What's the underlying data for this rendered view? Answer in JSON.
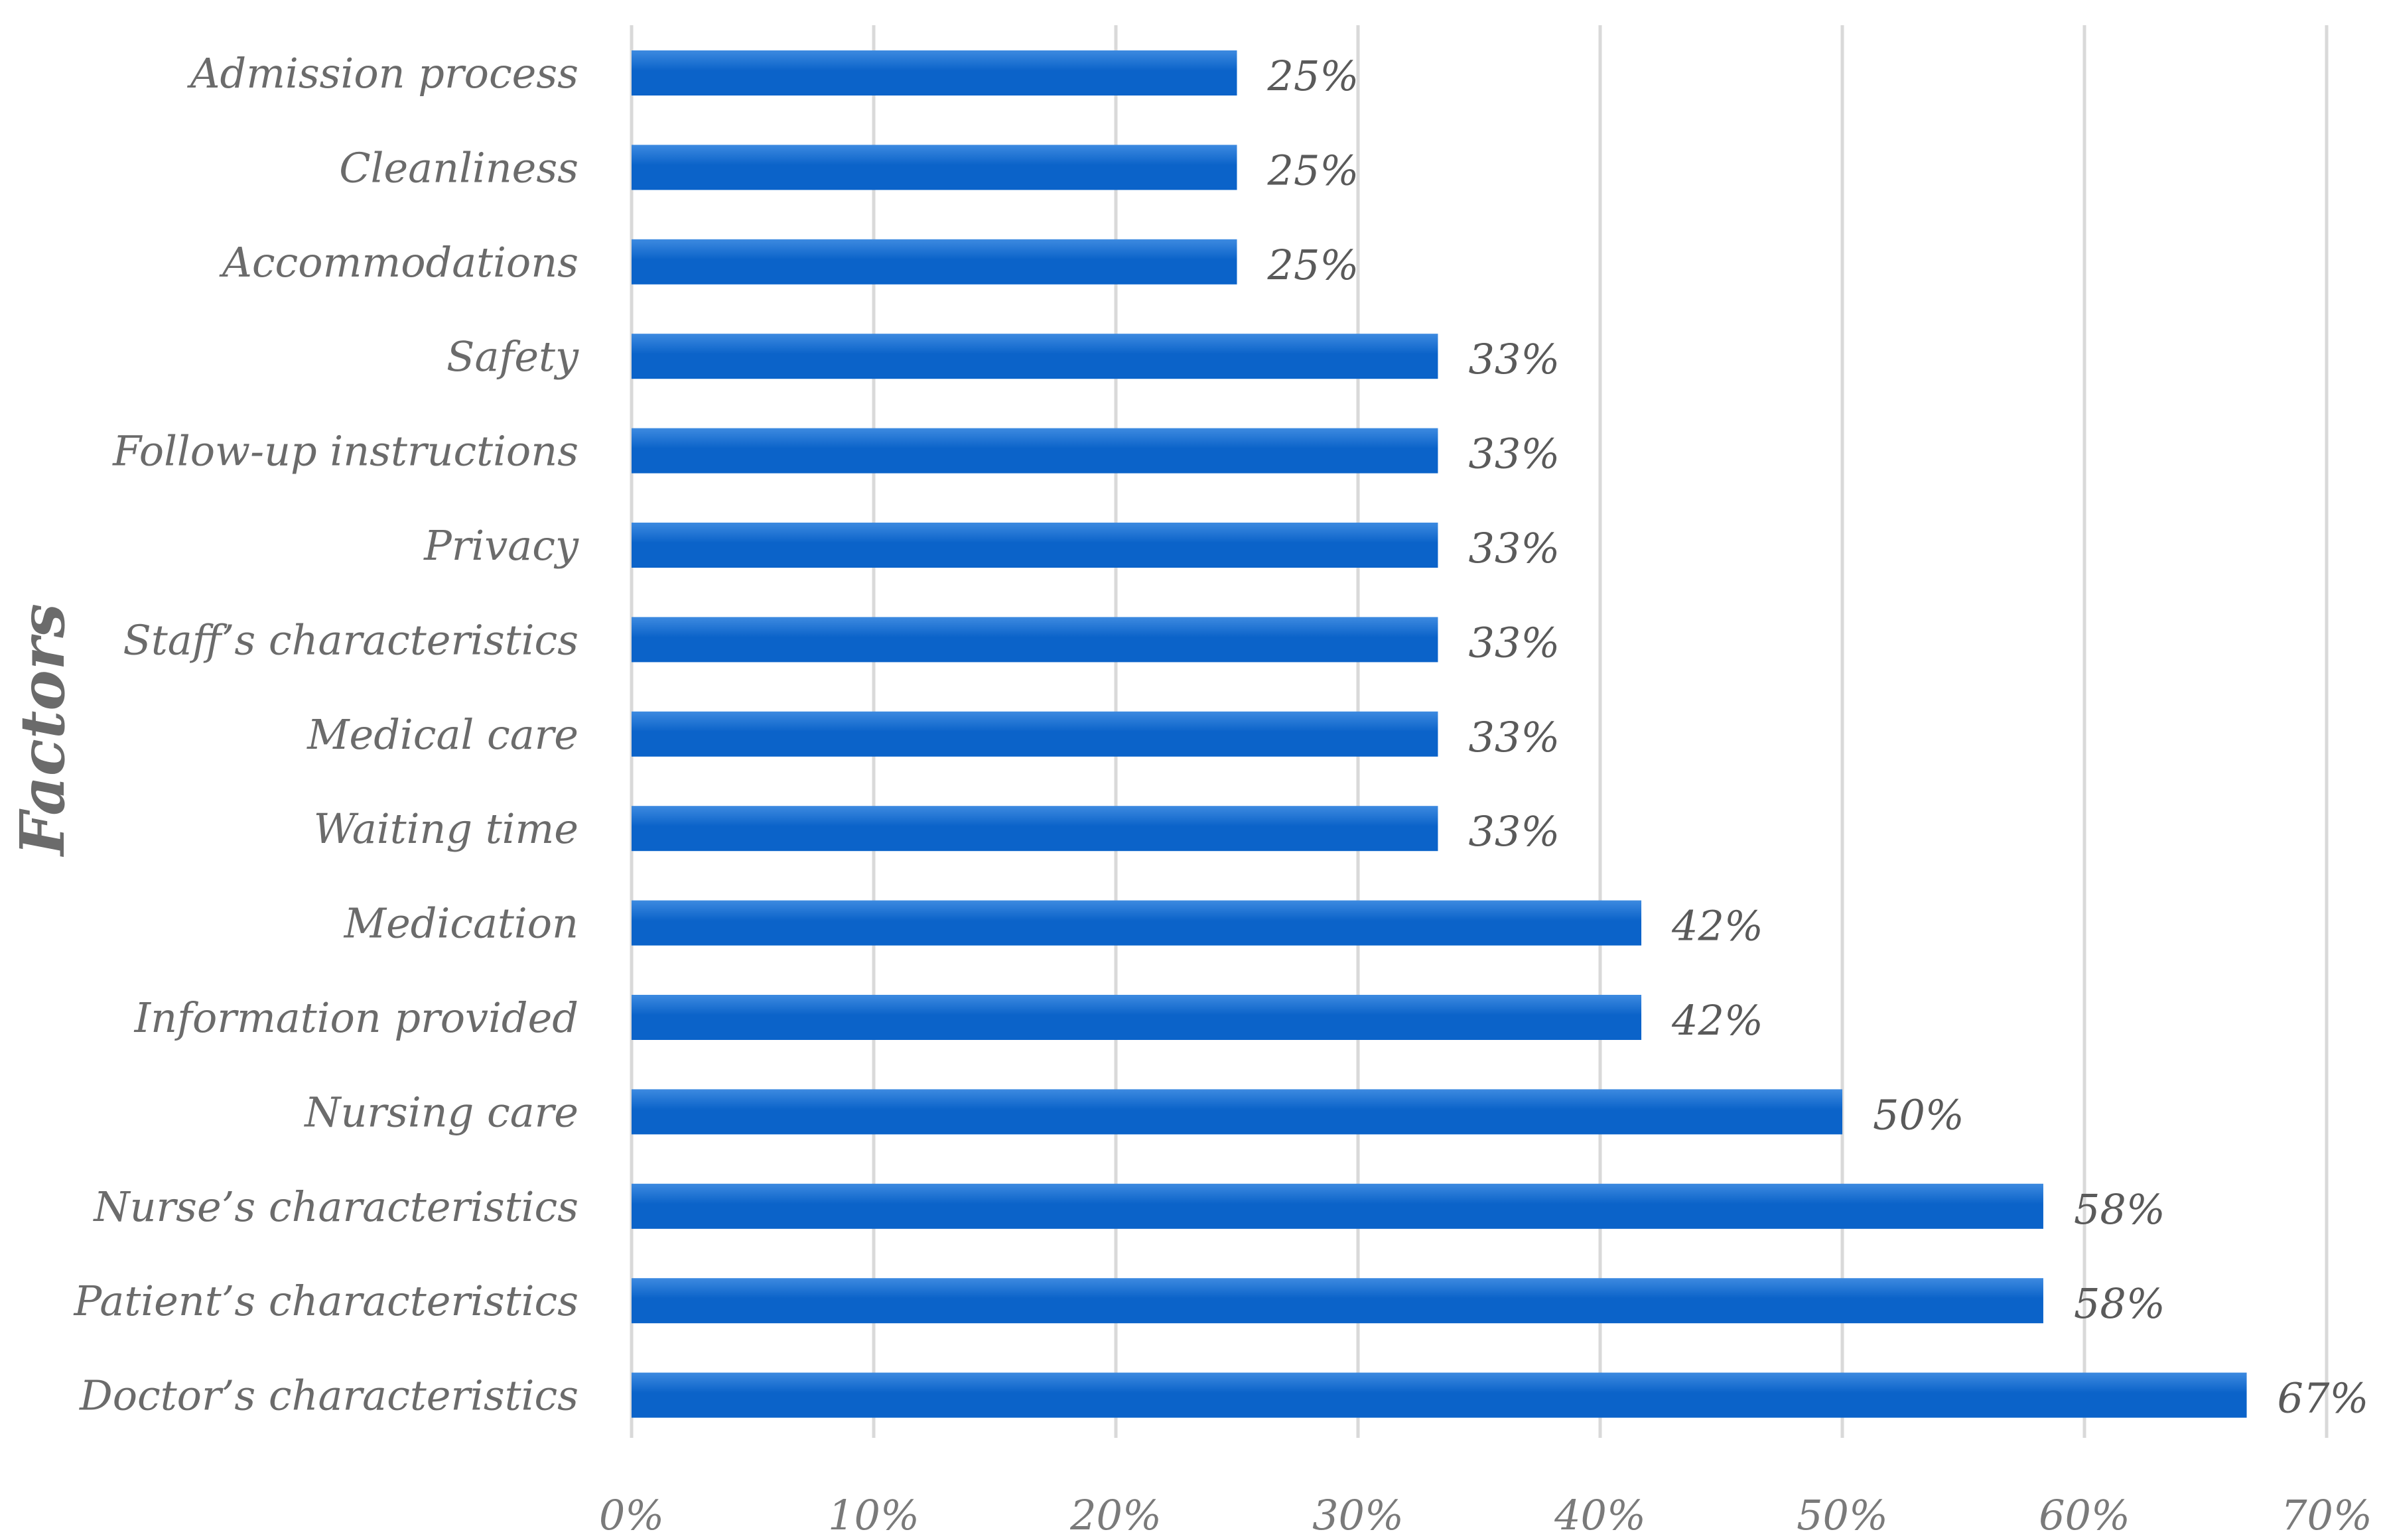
{
  "chart_data": {
    "type": "bar",
    "orientation": "horizontal",
    "ylabel": "Factors",
    "xlabel": "",
    "title": "",
    "categories": [
      "Admission process",
      "Cleanliness",
      "Accommodations",
      "Safety",
      "Follow-up instructions",
      "Privacy",
      "Staff’s characteristics",
      "Medical care",
      "Waiting time",
      "Medication",
      "Information provided",
      "Nursing care",
      "Nurse’s characteristics",
      "Patient’s characteristics",
      "Doctor’s characteristics"
    ],
    "values": [
      25,
      25,
      25,
      33.3,
      33.3,
      33.3,
      33.3,
      33.3,
      33.3,
      41.7,
      41.7,
      50,
      58.3,
      58.3,
      66.7
    ],
    "value_labels": [
      "25%",
      "25%",
      "25%",
      "33%",
      "33%",
      "33%",
      "33%",
      "33%",
      "33%",
      "42%",
      "42%",
      "50%",
      "58%",
      "58%",
      "67%"
    ],
    "xlim": [
      0,
      70
    ],
    "xticks": [
      0,
      10,
      20,
      30,
      40,
      50,
      60,
      70
    ],
    "xtick_labels": [
      "0%",
      "10%",
      "20%",
      "30%",
      "40%",
      "50%",
      "60%",
      "70%"
    ],
    "grid": "vertical",
    "legend": "none",
    "colors": {
      "bar": "#0b63c9",
      "bar_highlight": "#3d8ae0",
      "gridline": "#d9d9d9",
      "text": "#6b6b6b"
    }
  }
}
